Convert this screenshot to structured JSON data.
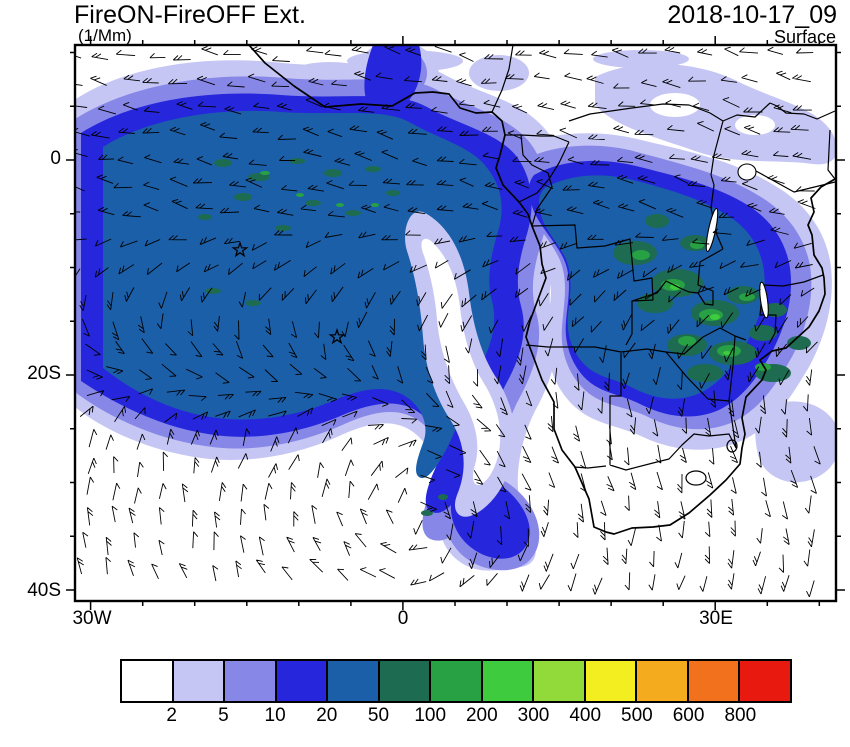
{
  "header": {
    "title": "FireON-FireOFF Ext.",
    "units": "(1/Mm)",
    "date": "2018-10-17_09",
    "level": "Surface"
  },
  "axes": {
    "y_ticks": [
      "0",
      "20S",
      "40S"
    ],
    "x_ticks": [
      "30W",
      "0",
      "30E"
    ]
  },
  "colorbar": {
    "labels": [
      "2",
      "5",
      "10",
      "20",
      "50",
      "100",
      "200",
      "300",
      "400",
      "500",
      "600",
      "800"
    ],
    "colors": [
      "#ffffff",
      "#c6c6f5",
      "#8787e8",
      "#2626dd",
      "#1b5fa8",
      "#1d6b50",
      "#28a044",
      "#3ecb3e",
      "#92d93a",
      "#f2ee20",
      "#f5ab1e",
      "#f2711c",
      "#e8190f"
    ]
  },
  "chart_data": {
    "type": "heatmap",
    "title": "FireON-FireOFF Ext.",
    "subtitle": "Surface",
    "timestamp": "2018-10-17_09",
    "units": "1/Mm",
    "x_axis": {
      "tick_labels": [
        "30W",
        "0",
        "30E"
      ],
      "range_deg_lon": [
        -31.5,
        41.5
      ]
    },
    "y_axis": {
      "tick_labels": [
        "0",
        "20S",
        "40S"
      ],
      "range_deg_lat": [
        10.7,
        -41.0
      ]
    },
    "levels": [
      2,
      5,
      10,
      20,
      50,
      100,
      200,
      300,
      400,
      500,
      600,
      800
    ],
    "palette": [
      "#ffffff",
      "#c6c6f5",
      "#8787e8",
      "#2626dd",
      "#1b5fa8",
      "#1d6b50",
      "#28a044",
      "#3ecb3e",
      "#92d93a",
      "#f2ee20",
      "#f5ab1e",
      "#f2711c",
      "#e8190f"
    ],
    "overlays": [
      "wind-barbs",
      "africa-coastline",
      "country-borders",
      "star-markers"
    ],
    "markers": [
      {
        "shape": "star",
        "lon": -15.6,
        "lat": -8.4
      },
      {
        "shape": "star",
        "lon": -6.3,
        "lat": -16.5
      }
    ],
    "features": [
      "Large 20-50 (1/Mm) smoke extinction plume over the southeast Atlantic between the equator and 20S",
      "Embedded 50-200 (1/Mm) patches over the Congo basin, Angola, Zambia and Zimbabwe",
      "2-10 (1/Mm) envelope sweeping southeast toward the Cape coast",
      "Clear slot (<2) curving through the plume near 0 longitude",
      "Background wind barb field over the full domain"
    ]
  }
}
